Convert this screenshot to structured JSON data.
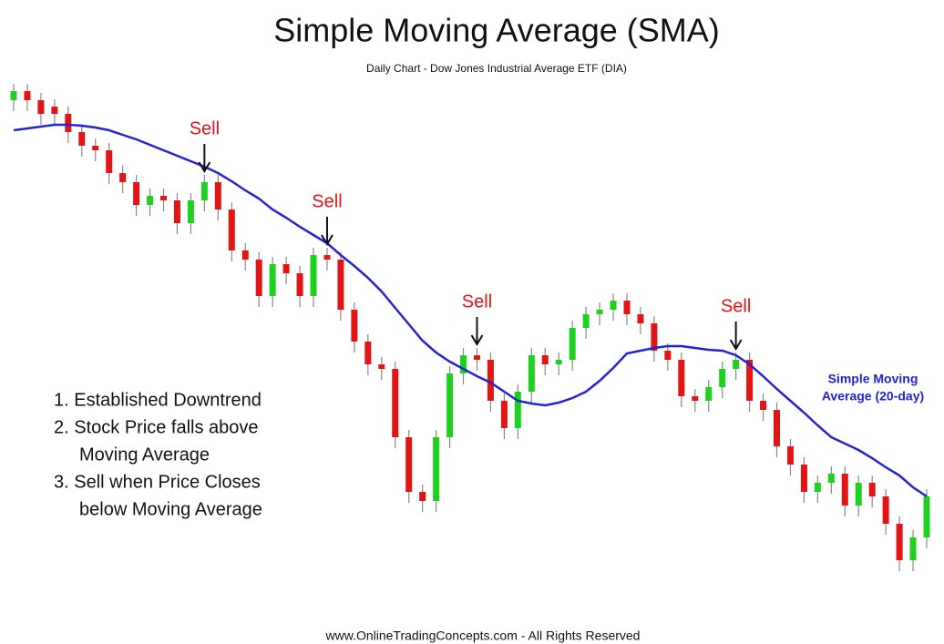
{
  "chart_data": {
    "type": "candlestick",
    "title": "Simple Moving Average (SMA)",
    "subtitle": "Daily Chart - Dow Jones Industrial Average ETF (DIA)",
    "footer": "www.OnlineTradingConcepts.com - All Rights Reserved",
    "ylim": [
      0,
      707
    ],
    "up_color": "#1fd11f",
    "down_color": "#e31414",
    "open": [
      597,
      607,
      597,
      590,
      582,
      562,
      547,
      542,
      517,
      507,
      482,
      492,
      487,
      462,
      487,
      507,
      477,
      432,
      422,
      382,
      417,
      407,
      382,
      427,
      422,
      367,
      332,
      307,
      302,
      227,
      167,
      157,
      227,
      297,
      317,
      312,
      267,
      237,
      277,
      317,
      307,
      312,
      347,
      362,
      367,
      377,
      362,
      352,
      322,
      312,
      272,
      267,
      282,
      302,
      312,
      267,
      257,
      217,
      197,
      167,
      177,
      187,
      152,
      177,
      162,
      132,
      92,
      117
    ],
    "high": [
      615,
      615,
      605,
      598,
      590,
      570,
      555,
      550,
      525,
      515,
      500,
      500,
      495,
      495,
      515,
      515,
      485,
      440,
      430,
      425,
      425,
      415,
      435,
      435,
      430,
      375,
      340,
      315,
      310,
      235,
      175,
      235,
      305,
      325,
      325,
      320,
      275,
      285,
      325,
      325,
      320,
      355,
      370,
      375,
      385,
      385,
      370,
      360,
      330,
      320,
      280,
      290,
      310,
      320,
      320,
      275,
      265,
      225,
      205,
      185,
      195,
      195,
      185,
      185,
      170,
      140,
      125,
      170
    ],
    "low": [
      585,
      585,
      570,
      570,
      550,
      535,
      530,
      505,
      495,
      470,
      470,
      475,
      450,
      450,
      475,
      465,
      420,
      410,
      370,
      370,
      395,
      370,
      370,
      410,
      355,
      320,
      295,
      290,
      215,
      155,
      145,
      145,
      215,
      285,
      300,
      255,
      225,
      225,
      265,
      295,
      295,
      300,
      335,
      350,
      355,
      350,
      340,
      310,
      300,
      260,
      255,
      255,
      270,
      290,
      255,
      245,
      205,
      185,
      155,
      155,
      165,
      140,
      140,
      150,
      120,
      80,
      80,
      105
    ],
    "close": [
      607,
      597,
      582,
      582,
      562,
      547,
      542,
      517,
      507,
      482,
      492,
      487,
      462,
      487,
      507,
      477,
      432,
      422,
      382,
      417,
      407,
      382,
      427,
      422,
      367,
      332,
      307,
      302,
      227,
      167,
      157,
      227,
      297,
      317,
      312,
      267,
      237,
      277,
      317,
      307,
      312,
      347,
      362,
      367,
      377,
      362,
      352,
      322,
      312,
      272,
      267,
      282,
      302,
      312,
      267,
      257,
      217,
      197,
      167,
      177,
      187,
      152,
      177,
      162,
      132,
      92,
      117,
      162
    ],
    "sma": {
      "label_lines": [
        "Simple Moving",
        "Average (20-day)"
      ],
      "color": "#2323d6",
      "values": [
        564,
        566,
        568,
        570,
        570,
        569,
        567,
        564,
        559,
        554,
        548,
        542,
        536,
        530,
        524,
        517,
        508,
        498,
        489,
        477,
        468,
        458,
        449,
        440,
        427,
        415,
        402,
        387,
        369,
        351,
        333,
        320,
        310,
        302,
        294,
        287,
        277,
        267,
        264,
        262,
        265,
        270,
        277,
        289,
        303,
        319,
        322,
        325,
        327,
        327,
        325,
        323,
        322,
        317,
        307,
        294,
        280,
        267,
        254,
        240,
        227,
        220,
        213,
        204,
        194,
        185,
        172,
        162
      ]
    },
    "annotations": [
      {
        "text": "Sell",
        "x": 14
      },
      {
        "text": "Sell",
        "x": 23
      },
      {
        "text": "Sell",
        "x": 34
      },
      {
        "text": "Sell",
        "x": 53
      }
    ],
    "annotation_color": "#e31414",
    "notes": [
      "1. Established Downtrend",
      "2. Stock Price falls above",
      "Moving Average",
      "3. Sell when Price Closes",
      "below Moving Average"
    ]
  }
}
